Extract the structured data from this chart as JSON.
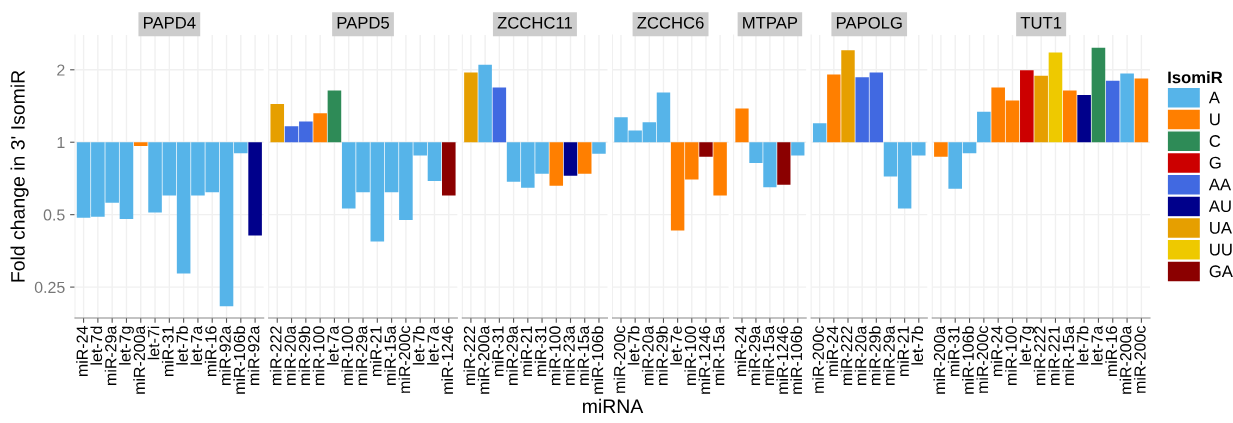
{
  "chart_data": [
    {
      "type": "bar",
      "title": "PAPD4",
      "ylabel": "Fold change in 3' IsomiR",
      "log": true,
      "ylim": [
        0.186,
        2.79
      ],
      "yticks": [
        0.25,
        0.5,
        1,
        2
      ],
      "grid": true,
      "categories": [
        "miR-24",
        "let-7d",
        "miR-29a",
        "let-7g",
        "miR-200a",
        "let-7i",
        "miR-31",
        "let-7b",
        "let-7a",
        "miR-16",
        "miR-92a",
        "miR-106b",
        "miR-92a"
      ],
      "base": [
        1,
        1,
        1,
        1,
        1,
        1,
        1,
        1,
        1,
        1,
        1,
        1,
        1
      ],
      "values": [
        -0.514,
        -0.51,
        -0.44,
        -0.52,
        -0.035,
        -0.49,
        -0.4,
        -0.715,
        -0.4,
        -0.38,
        -0.792,
        -0.1,
        -0.59
      ],
      "colors": [
        "#56b4e9",
        "#56b4e9",
        "#56b4e9",
        "#56b4e9",
        "#ff7f00",
        "#56b4e9",
        "#56b4e9",
        "#56b4e9",
        "#56b4e9",
        "#56b4e9",
        "#56b4e9",
        "#56b4e9",
        "#00008b"
      ]
    },
    {
      "type": "bar",
      "title": "PAPD5",
      "log": true,
      "ylim": [
        0.186,
        2.79
      ],
      "yticks": [
        0.25,
        0.5,
        1,
        2
      ],
      "grid": true,
      "tick_labels": "x",
      "categories": [
        "miR-222",
        "miR-20a",
        "miR-29b",
        "miR-100",
        "let-7a",
        "miR-100",
        "miR-29a",
        "miR-21",
        "miR-15a",
        "miR-200c",
        "let-7b",
        "let-7a",
        "miR-1246"
      ],
      "base": [
        1,
        1,
        1,
        1,
        1,
        1,
        1,
        1,
        1,
        1,
        1,
        1,
        1
      ],
      "values": [
        0.44,
        0.165,
        0.22,
        0.32,
        0.64,
        -0.47,
        -0.38,
        -0.613,
        -0.38,
        -0.525,
        -0.12,
        -0.31,
        -0.4
      ],
      "colors": [
        "#e69f00",
        "#4169e1",
        "#4169e1",
        "#ff7f00",
        "#2e8b57",
        "#56b4e9",
        "#56b4e9",
        "#56b4e9",
        "#56b4e9",
        "#56b4e9",
        "#56b4e9",
        "#56b4e9",
        "#8b0000"
      ]
    },
    {
      "type": "bar",
      "title": "ZCCHC11",
      "xlabel": "miRNA",
      "log": true,
      "ylim": [
        0.186,
        2.79
      ],
      "yticks": [
        0.25,
        0.5,
        1,
        2
      ],
      "grid": true,
      "tick_labels": "x",
      "categories": [
        "miR-222",
        "miR-200a",
        "miR-31",
        "miR-29a",
        "miR-21",
        "miR-31",
        "miR-100",
        "miR-23a",
        "miR-15a",
        "miR-106b"
      ],
      "base": [
        1,
        1,
        1,
        1,
        1,
        1,
        1,
        1,
        1,
        1
      ],
      "values": [
        0.95,
        1.1,
        0.69,
        -0.315,
        -0.353,
        -0.26,
        -0.34,
        -0.275,
        -0.26,
        -0.105
      ],
      "colors": [
        "#e69f00",
        "#56b4e9",
        "#4169e1",
        "#56b4e9",
        "#56b4e9",
        "#56b4e9",
        "#ff7f00",
        "#00008b",
        "#ff7f00",
        "#56b4e9"
      ]
    },
    {
      "type": "bar",
      "title": "ZCCHC6",
      "log": true,
      "ylim": [
        0.186,
        2.79
      ],
      "yticks": [
        0.25,
        0.5,
        1,
        2
      ],
      "grid": true,
      "tick_labels": "x",
      "categories": [
        "miR-200c",
        "let-7b",
        "miR-20a",
        "miR-29b",
        "let-7e",
        "miR-100",
        "miR-1246",
        "miR-15a"
      ],
      "base": [
        1,
        1,
        1,
        1,
        1,
        1,
        1,
        1
      ],
      "values": [
        0.27,
        0.12,
        0.21,
        0.61,
        -0.57,
        -0.3,
        -0.13,
        -0.4
      ],
      "colors": [
        "#56b4e9",
        "#56b4e9",
        "#56b4e9",
        "#56b4e9",
        "#ff7f00",
        "#ff7f00",
        "#8b0000",
        "#ff7f00"
      ]
    },
    {
      "type": "bar",
      "title": "MTPAP",
      "log": true,
      "ylim": [
        0.186,
        2.79
      ],
      "yticks": [
        0.25,
        0.5,
        1,
        2
      ],
      "grid": true,
      "tick_labels": "x",
      "categories": [
        "miR-24",
        "miR-29a",
        "miR-15a",
        "miR-1246",
        "miR-106b"
      ],
      "base": [
        1,
        1,
        1,
        1,
        1
      ],
      "values": [
        0.38,
        -0.18,
        -0.35,
        -0.335,
        -0.12
      ],
      "colors": [
        "#ff7f00",
        "#56b4e9",
        "#56b4e9",
        "#8b0000",
        "#56b4e9"
      ]
    },
    {
      "type": "bar",
      "title": "PAPOLG",
      "log": true,
      "ylim": [
        0.186,
        2.79
      ],
      "yticks": [
        0.25,
        0.5,
        1,
        2
      ],
      "grid": true,
      "tick_labels": "x",
      "categories": [
        "miR-200c",
        "miR-24",
        "miR-222",
        "miR-20a",
        "miR-29b",
        "miR-29a",
        "miR-21",
        "let-7b"
      ],
      "base": [
        1,
        1,
        1,
        1,
        1,
        1,
        1,
        1
      ],
      "values": [
        0.2,
        0.91,
        1.41,
        0.86,
        0.95,
        -0.28,
        -0.47,
        -0.12
      ],
      "colors": [
        "#56b4e9",
        "#ff7f00",
        "#e69f00",
        "#4169e1",
        "#4169e1",
        "#56b4e9",
        "#56b4e9",
        "#56b4e9"
      ]
    },
    {
      "type": "bar",
      "title": "TUT1",
      "log": true,
      "ylim": [
        0.186,
        2.79
      ],
      "yticks": [
        0.25,
        0.5,
        1,
        2
      ],
      "grid": true,
      "tick_labels": "x",
      "legend": "right",
      "legend_title": "IsomiR",
      "categories": [
        "miR-200a",
        "miR-31",
        "miR-106b",
        "miR-200c",
        "miR-24",
        "miR-100",
        "let-7g",
        "miR-222",
        "miR-221",
        "miR-15a",
        "let-7b",
        "let-7a",
        "miR-16",
        "miR-200a",
        "miR-200c"
      ],
      "series": [
        {
          "name": "A",
          "color": "#56b4e9",
          "base": [
            null,
            1,
            1,
            1,
            null,
            null,
            null,
            null,
            null,
            null,
            null,
            null,
            null,
            1,
            null
          ],
          "values": [
            null,
            -0.36,
            -0.1,
            0.34,
            null,
            null,
            null,
            null,
            null,
            null,
            null,
            null,
            null,
            0.93,
            null
          ]
        },
        {
          "name": "U",
          "color": "#ff7f00",
          "base": [
            1,
            null,
            null,
            null,
            1,
            1,
            null,
            null,
            null,
            1,
            null,
            null,
            null,
            null,
            1
          ],
          "values": [
            -0.13,
            null,
            null,
            null,
            0.69,
            0.49,
            null,
            null,
            null,
            0.64,
            null,
            null,
            null,
            null,
            0.84
          ]
        },
        {
          "name": "C",
          "color": "#2e8b57",
          "base": [
            null,
            null,
            null,
            null,
            null,
            null,
            null,
            null,
            null,
            null,
            null,
            1,
            null,
            null,
            null
          ],
          "values": [
            null,
            null,
            null,
            null,
            null,
            null,
            null,
            null,
            null,
            null,
            null,
            1.47,
            null,
            null,
            null
          ]
        },
        {
          "name": "G",
          "color": "#cc0000",
          "base": [
            null,
            null,
            null,
            null,
            null,
            null,
            1,
            null,
            null,
            null,
            null,
            null,
            null,
            null,
            null
          ],
          "values": [
            null,
            null,
            null,
            null,
            null,
            null,
            0.99,
            null,
            null,
            null,
            null,
            null,
            null,
            null,
            null
          ]
        },
        {
          "name": "AA",
          "color": "#4169e1",
          "base": [
            null,
            null,
            null,
            null,
            null,
            null,
            null,
            null,
            null,
            null,
            null,
            null,
            1,
            null,
            null
          ],
          "values": [
            null,
            null,
            null,
            null,
            null,
            null,
            null,
            null,
            null,
            null,
            null,
            null,
            0.8,
            null,
            null
          ]
        },
        {
          "name": "AU",
          "color": "#00008b",
          "base": [
            null,
            null,
            null,
            null,
            null,
            null,
            null,
            null,
            null,
            null,
            1,
            null,
            null,
            null,
            null
          ],
          "values": [
            null,
            null,
            null,
            null,
            null,
            null,
            null,
            null,
            null,
            null,
            0.57,
            null,
            null,
            null,
            null
          ]
        },
        {
          "name": "UA",
          "color": "#e69f00",
          "base": [
            null,
            null,
            null,
            null,
            null,
            null,
            null,
            1,
            null,
            null,
            null,
            null,
            null,
            null,
            null
          ],
          "values": [
            null,
            null,
            null,
            null,
            null,
            null,
            null,
            0.89,
            null,
            null,
            null,
            null,
            null,
            null,
            null
          ]
        },
        {
          "name": "UU",
          "color": "#eec900",
          "base": [
            null,
            null,
            null,
            null,
            null,
            null,
            null,
            null,
            1,
            null,
            null,
            null,
            null,
            null,
            null
          ],
          "values": [
            null,
            null,
            null,
            null,
            null,
            null,
            null,
            null,
            1.36,
            null,
            null,
            null,
            null,
            null,
            null
          ]
        },
        {
          "name": "GA",
          "color": "#8b0000",
          "values": [
            null,
            null,
            null,
            null,
            null,
            null,
            null,
            null,
            null,
            null,
            null,
            null,
            null,
            null,
            null
          ]
        }
      ]
    }
  ]
}
